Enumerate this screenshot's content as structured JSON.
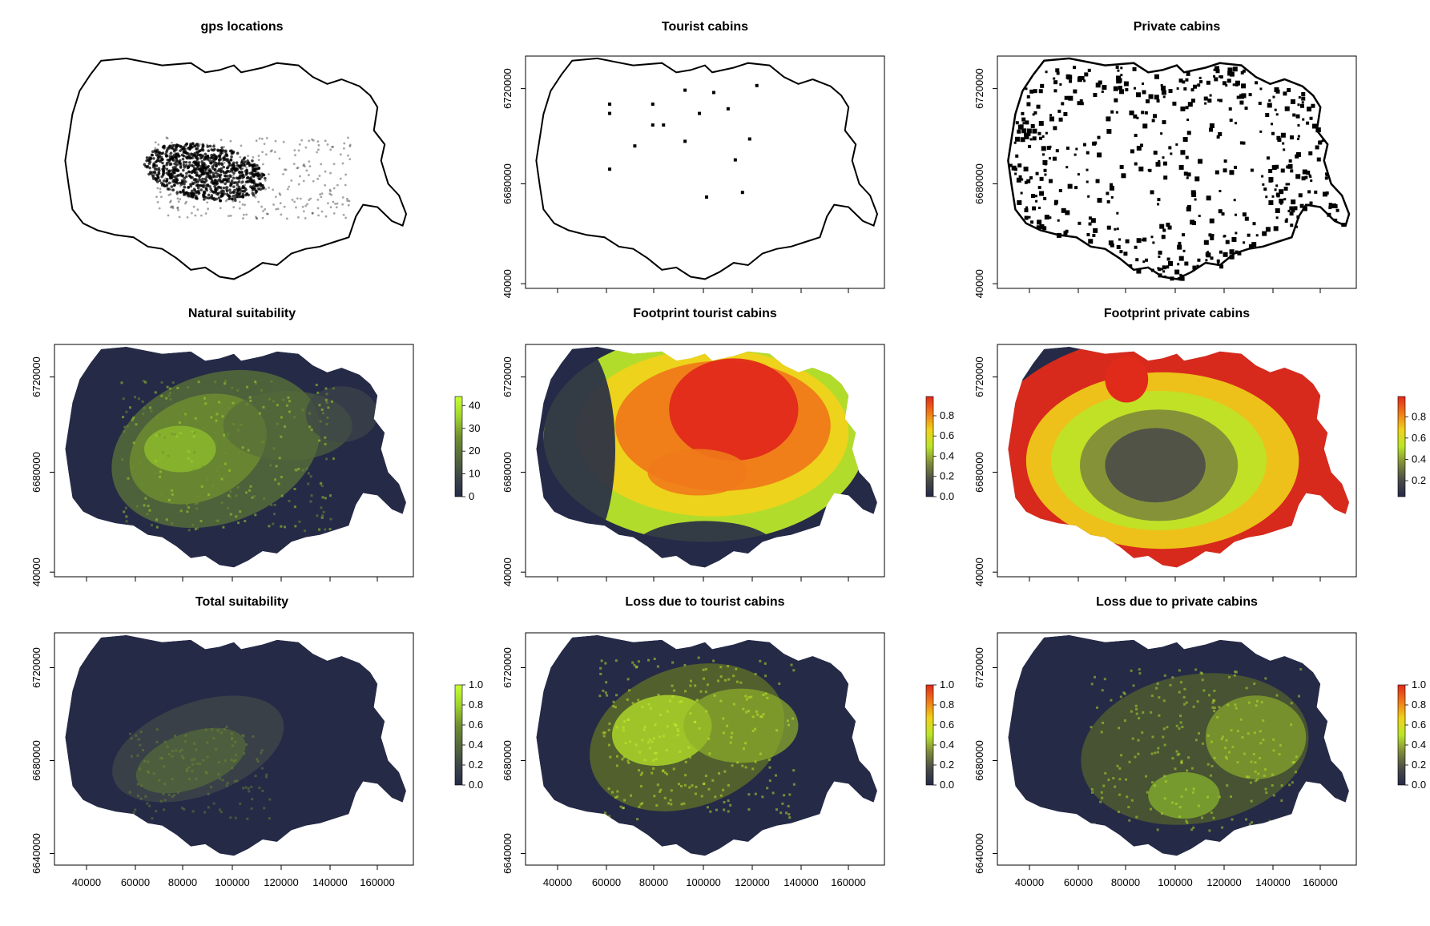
{
  "figure": {
    "colors": {
      "background": "#ffffff",
      "map_fill": "#252a47",
      "green_scale": [
        "#252a47",
        "#3f4648",
        "#556b3a",
        "#6f8f2f",
        "#9fd62a",
        "#c8ff2e"
      ],
      "heat_scale": [
        "#252a47",
        "#4a4c48",
        "#808a3a",
        "#b9e62a",
        "#f0d21a",
        "#f07a1a",
        "#e02a1a"
      ]
    }
  },
  "chart_data": [
    {
      "id": "gps",
      "type": "scatter",
      "title": "gps locations",
      "axes_drawn": false,
      "outline": true,
      "x_ticks": [],
      "y_ticks": [],
      "legend": null
    },
    {
      "id": "tourist",
      "type": "scatter",
      "title": "Tourist cabins",
      "axes_drawn": true,
      "outline": true,
      "x_ticks": [],
      "y_ticks": [
        "40000",
        "6680000",
        "6720000"
      ],
      "legend": null
    },
    {
      "id": "private",
      "type": "heatmap",
      "title": "Private cabins",
      "axes_drawn": true,
      "outline": true,
      "x_ticks": [],
      "y_ticks": [
        "40000",
        "6680000",
        "6720000"
      ],
      "legend": null
    },
    {
      "id": "natural",
      "type": "heatmap",
      "title": "Natural suitability",
      "axes_drawn": true,
      "x_ticks": [],
      "y_ticks": [
        "40000",
        "6680000",
        "6720000"
      ],
      "legend": {
        "palette": "green",
        "labels": [
          "0",
          "10",
          "20",
          "30",
          "40"
        ],
        "range": [
          0,
          44
        ]
      }
    },
    {
      "id": "fp_tourist",
      "type": "heatmap",
      "title": "Footprint tourist cabins",
      "axes_drawn": true,
      "x_ticks": [],
      "y_ticks": [
        "40000",
        "6680000",
        "6720000"
      ],
      "legend": {
        "palette": "heat",
        "labels": [
          "0.0",
          "0.2",
          "0.4",
          "0.6",
          "0.8"
        ],
        "range": [
          0,
          0.99
        ]
      }
    },
    {
      "id": "fp_private",
      "type": "heatmap",
      "title": "Footprint private cabins",
      "axes_drawn": true,
      "x_ticks": [],
      "y_ticks": [
        "40000",
        "6680000",
        "6720000"
      ],
      "legend": {
        "palette": "heat",
        "labels": [
          "0.2",
          "0.4",
          "0.6",
          "0.8"
        ],
        "range": [
          0.05,
          0.99
        ]
      }
    },
    {
      "id": "total",
      "type": "heatmap",
      "title": "Total suitability",
      "axes_drawn": true,
      "x_ticks": [
        "40000",
        "60000",
        "80000",
        "100000",
        "120000",
        "140000",
        "160000"
      ],
      "y_ticks": [
        "6640000",
        "6680000",
        "6720000"
      ],
      "legend": {
        "palette": "green",
        "labels": [
          "0.0",
          "0.2",
          "0.4",
          "0.6",
          "0.8",
          "1.0"
        ],
        "range": [
          0,
          1
        ]
      }
    },
    {
      "id": "loss_tourist",
      "type": "heatmap",
      "title": "Loss due to tourist cabins",
      "axes_drawn": true,
      "x_ticks": [
        "40000",
        "60000",
        "80000",
        "100000",
        "120000",
        "140000",
        "160000"
      ],
      "y_ticks": [
        "6640000",
        "6680000",
        "6720000"
      ],
      "legend": {
        "palette": "heat",
        "labels": [
          "0.0",
          "0.2",
          "0.4",
          "0.6",
          "0.8",
          "1.0"
        ],
        "range": [
          0,
          1
        ]
      }
    },
    {
      "id": "loss_private",
      "type": "heatmap",
      "title": "Loss due to private cabins",
      "axes_drawn": true,
      "x_ticks": [
        "40000",
        "60000",
        "80000",
        "100000",
        "120000",
        "140000",
        "160000"
      ],
      "y_ticks": [
        "6640000",
        "6680000",
        "6720000"
      ],
      "legend": {
        "palette": "heat",
        "labels": [
          "0.0",
          "0.2",
          "0.4",
          "0.6",
          "0.8",
          "1.0"
        ],
        "range": [
          0,
          1
        ]
      }
    }
  ]
}
